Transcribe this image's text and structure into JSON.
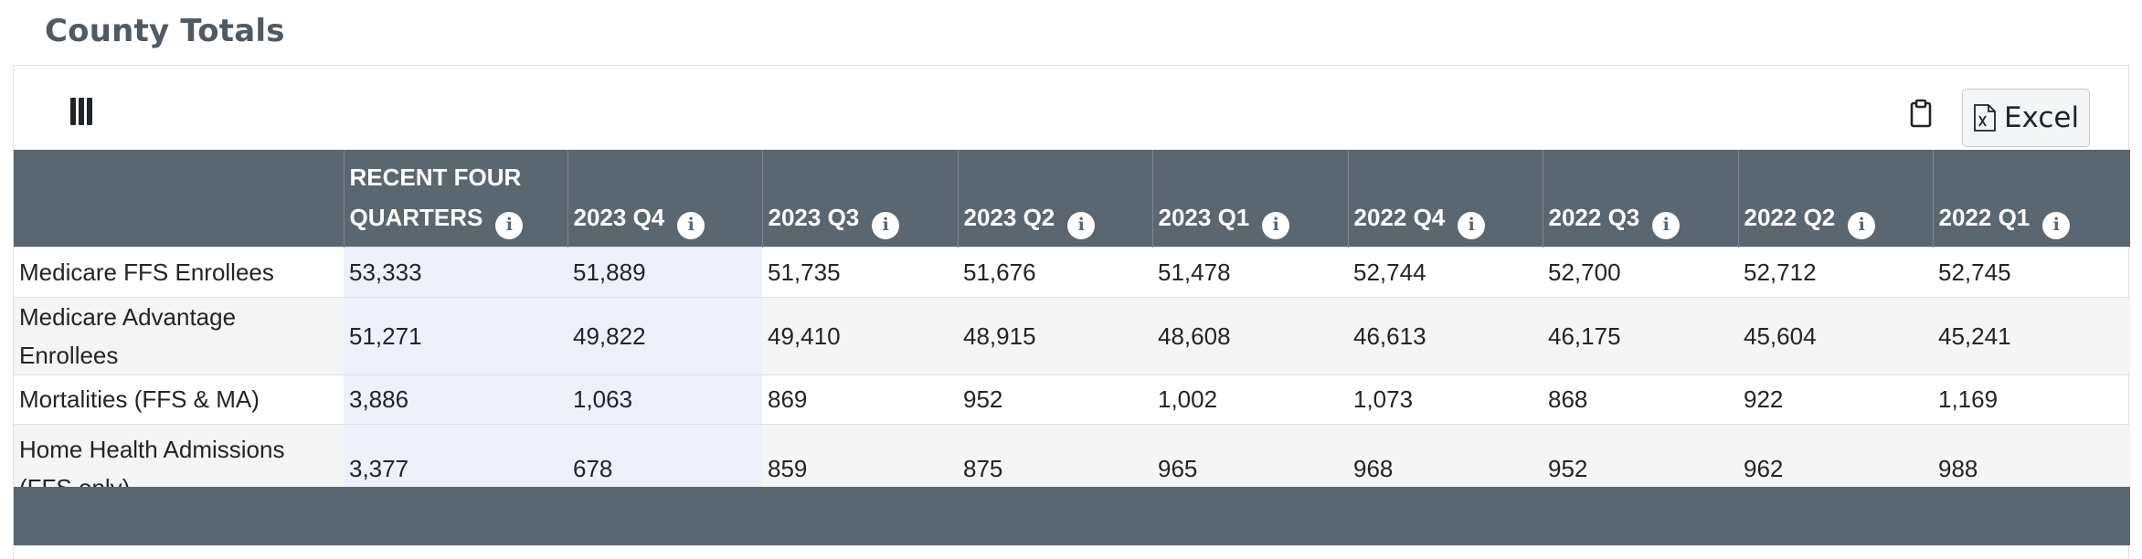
{
  "section": {
    "title": "County Totals"
  },
  "toolbar": {
    "columns_icon": "columns-icon",
    "clipboard_icon": "clipboard-icon",
    "excel_label": "Excel",
    "excel_icon": "excel-file-icon"
  },
  "table": {
    "columns": [
      {
        "label": ""
      },
      {
        "label": "RECENT FOUR QUARTERS",
        "line1": "RECENT FOUR",
        "line2": "QUARTERS",
        "info": "i"
      },
      {
        "label": "2023 Q4",
        "info": "i"
      },
      {
        "label": "2023 Q3",
        "info": "i"
      },
      {
        "label": "2023 Q2",
        "info": "i"
      },
      {
        "label": "2023 Q1",
        "info": "i"
      },
      {
        "label": "2022 Q4",
        "info": "i"
      },
      {
        "label": "2022 Q3",
        "info": "i"
      },
      {
        "label": "2022 Q2",
        "info": "i"
      },
      {
        "label": "2022 Q1",
        "info": "i"
      }
    ],
    "rows": [
      {
        "label": "Medicare FFS Enrollees",
        "cells": [
          "53,333",
          "51,889",
          "51,735",
          "51,676",
          "51,478",
          "52,744",
          "52,700",
          "52,712",
          "52,745"
        ]
      },
      {
        "label": "Medicare Advantage Enrollees",
        "cells": [
          "51,271",
          "49,822",
          "49,410",
          "48,915",
          "48,608",
          "46,613",
          "46,175",
          "45,604",
          "45,241"
        ]
      },
      {
        "label": "Mortalities (FFS & MA)",
        "cells": [
          "3,886",
          "1,063",
          "869",
          "952",
          "1,002",
          "1,073",
          "868",
          "922",
          "1,169"
        ]
      },
      {
        "label": "Home Health Admissions (FFS only)",
        "cells": [
          "3,377",
          "678",
          "859",
          "875",
          "965",
          "968",
          "952",
          "962",
          "988"
        ]
      }
    ]
  },
  "colors": {
    "header_bg": "#5a6670",
    "highlight_bg": "#eef1fb",
    "stripe_bg": "#f5f5f5",
    "title_color": "#515961"
  }
}
